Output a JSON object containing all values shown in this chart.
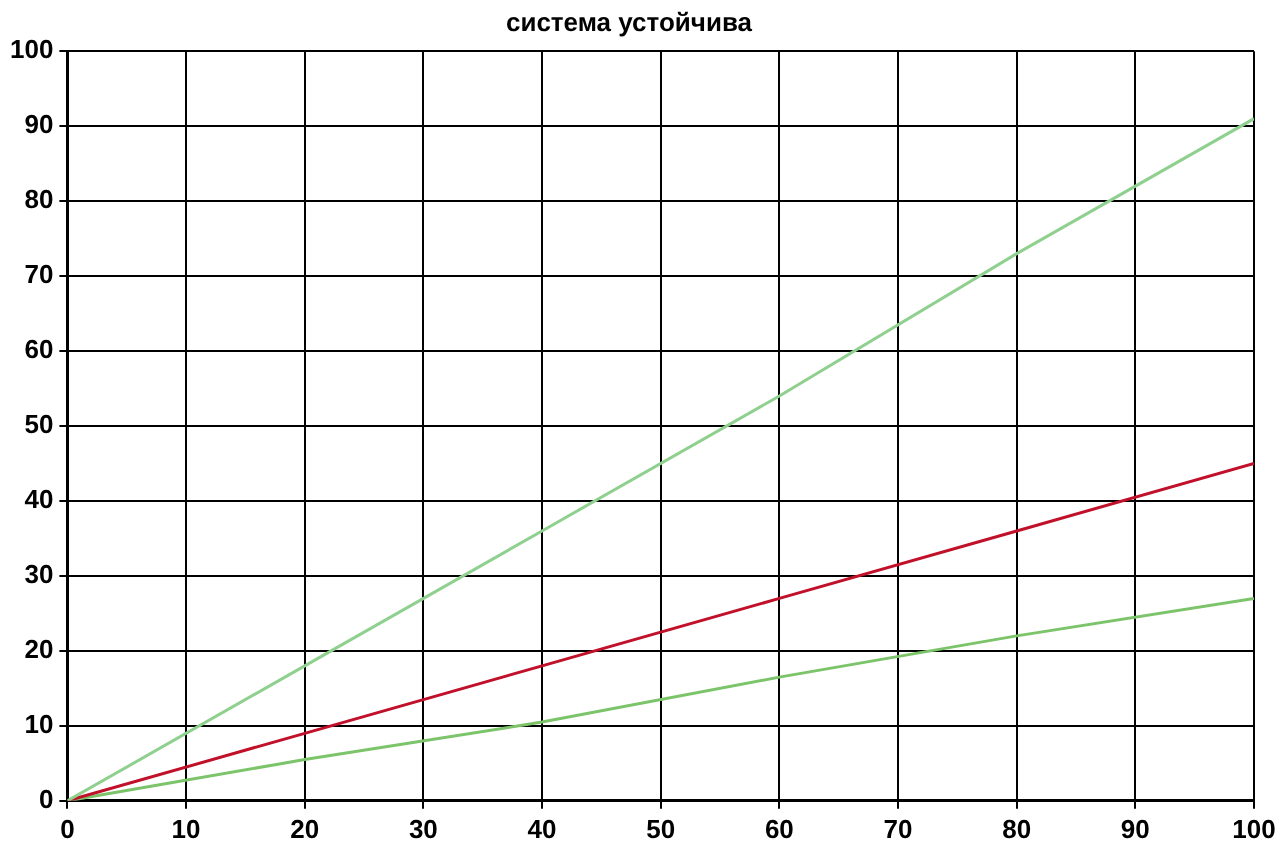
{
  "chart_data": {
    "type": "line",
    "title": "система устойчива",
    "x": [
      0,
      20,
      40,
      60,
      80,
      100
    ],
    "series": [
      {
        "color": "#8fd08f",
        "values": [
          0,
          18,
          36,
          54,
          73,
          91
        ]
      },
      {
        "color": "#c0102a",
        "values": [
          0,
          9,
          18,
          27,
          36,
          45
        ]
      },
      {
        "color": "#7cc46a",
        "values": [
          0,
          5.5,
          10.5,
          16.5,
          22,
          27
        ]
      }
    ],
    "xlim": [
      0,
      100
    ],
    "xticks": [
      0,
      10,
      20,
      30,
      40,
      50,
      60,
      70,
      80,
      90,
      100
    ],
    "ylim": [
      0,
      100
    ],
    "yticks": [
      0,
      10,
      20,
      30,
      40,
      50,
      60,
      70,
      80,
      90,
      100
    ],
    "grid": true,
    "line_style": "solid",
    "marker": "none"
  }
}
